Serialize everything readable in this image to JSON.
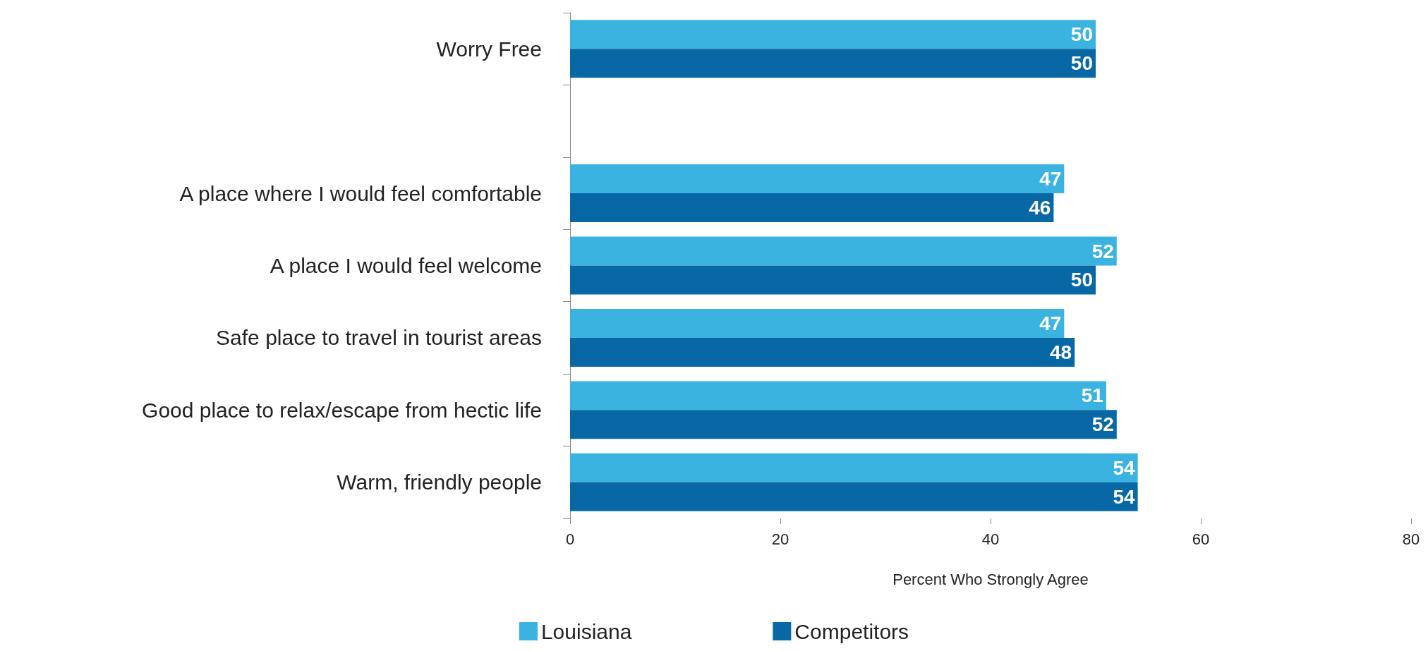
{
  "chart_data": {
    "type": "bar",
    "orientation": "horizontal",
    "xlabel": "Percent Who Strongly Agree",
    "categories": [
      "Worry Free",
      null,
      "A place where I would feel comfortable",
      "A place I would feel welcome",
      "Safe place to travel in tourist areas",
      "Good place to relax/escape from hectic life",
      "Warm, friendly people"
    ],
    "series": [
      {
        "name": "Louisiana",
        "color": "#3bb3e0",
        "values": [
          50,
          null,
          47,
          52,
          47,
          51,
          54
        ]
      },
      {
        "name": "Competitors",
        "color": "#0868a6",
        "values": [
          50,
          null,
          46,
          50,
          48,
          52,
          54
        ]
      }
    ],
    "xlim": [
      0,
      80
    ],
    "xticks": [
      0,
      20,
      40,
      60,
      80
    ],
    "data_labels": true,
    "grid": false,
    "legend": "bottom"
  }
}
